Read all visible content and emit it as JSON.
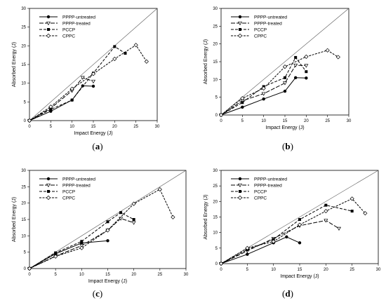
{
  "chart_data": [
    {
      "type": "line",
      "caption": "a",
      "xlabel": "Impact Energy (J)",
      "ylabel": "Absorbed Energy (J)",
      "xlim": [
        0,
        30
      ],
      "ylim": [
        0,
        30
      ],
      "xticks": [
        "0",
        "5",
        "10",
        "15",
        "20",
        "25",
        "30"
      ],
      "yticks": [
        "0",
        "5",
        "10",
        "15",
        "20",
        "25",
        "30"
      ],
      "reference_line": "y = x",
      "grid": false,
      "legend_position": "top-left",
      "series": [
        {
          "name": "PPPP-untreated",
          "dash": "solid",
          "marker": "filled-circle",
          "x": [
            0,
            5,
            10,
            12.5,
            15
          ],
          "y": [
            0,
            2.5,
            5.5,
            9.3,
            9.2
          ]
        },
        {
          "name": "PPPP-treated",
          "dash": "long-dash",
          "marker": "open-triangle",
          "x": [
            0,
            5,
            10,
            12.5,
            15
          ],
          "y": [
            0,
            3.3,
            8,
            11.5,
            10.5
          ]
        },
        {
          "name": "PCCP",
          "dash": "dash",
          "marker": "filled-square",
          "x": [
            0,
            5,
            10,
            15,
            20,
            22.5
          ],
          "y": [
            0,
            3,
            5.5,
            12.7,
            19.8,
            18
          ]
        },
        {
          "name": "CPPC",
          "dash": "short-dash",
          "marker": "open-diamond",
          "x": [
            0,
            5,
            10,
            15,
            20,
            25,
            27.5
          ],
          "y": [
            0,
            3.7,
            8.5,
            12.5,
            16.5,
            20.2,
            15.8
          ]
        }
      ]
    },
    {
      "type": "line",
      "caption": "b",
      "xlabel": "Impact Energy (J)",
      "ylabel": "Absorbed Energy (J)",
      "xlim": [
        0,
        30
      ],
      "ylim": [
        0,
        30
      ],
      "xticks": [
        "0",
        "5",
        "10",
        "15",
        "20",
        "25",
        "30"
      ],
      "yticks": [
        "0",
        "5",
        "10",
        "15",
        "20",
        "25",
        "30"
      ],
      "reference_line": "y = x",
      "grid": false,
      "legend_position": "top-left",
      "series": [
        {
          "name": "PPPP-untreated",
          "dash": "solid",
          "marker": "filled-circle",
          "x": [
            0,
            5,
            10,
            15,
            17.5,
            20
          ],
          "y": [
            0,
            2.2,
            4.5,
            6.7,
            10.5,
            10.4
          ]
        },
        {
          "name": "PPPP-treated",
          "dash": "long-dash",
          "marker": "open-triangle",
          "x": [
            0,
            5,
            10,
            15,
            17.5,
            20
          ],
          "y": [
            0,
            4,
            6,
            9,
            14,
            13.9
          ]
        },
        {
          "name": "PCCP",
          "dash": "dash",
          "marker": "filled-square",
          "x": [
            0,
            5,
            10,
            15,
            17.5,
            20
          ],
          "y": [
            0,
            3.5,
            8,
            10.5,
            16.2,
            12.2
          ]
        },
        {
          "name": "CPPC",
          "dash": "short-dash",
          "marker": "open-diamond",
          "x": [
            0,
            5,
            10,
            15,
            20,
            25,
            27.5
          ],
          "y": [
            0,
            4.7,
            7.5,
            13.6,
            16.4,
            18.2,
            16.3
          ]
        }
      ]
    },
    {
      "type": "line",
      "caption": "c",
      "xlabel": "Impact Energy (J)",
      "ylabel": "Absorbed Energy (J)",
      "xlim": [
        0,
        30
      ],
      "ylim": [
        0,
        30
      ],
      "xticks": [
        "0",
        "5",
        "10",
        "15",
        "20",
        "25",
        "30"
      ],
      "yticks": [
        "0",
        "5",
        "10",
        "15",
        "20",
        "25",
        "30"
      ],
      "reference_line": "y = x",
      "grid": false,
      "legend_position": "top-left",
      "series": [
        {
          "name": "PPPP-untreated",
          "dash": "solid",
          "marker": "filled-circle",
          "x": [
            0,
            5,
            10,
            15
          ],
          "y": [
            0,
            4.5,
            7.8,
            8.5
          ]
        },
        {
          "name": "PPPP-treated",
          "dash": "long-dash",
          "marker": "open-triangle",
          "x": [
            0,
            5,
            10,
            15,
            17.5,
            20
          ],
          "y": [
            0,
            3.8,
            7,
            11.7,
            15.3,
            14
          ]
        },
        {
          "name": "PCCP",
          "dash": "dash",
          "marker": "filled-square",
          "x": [
            0,
            5,
            10,
            15,
            17.5,
            20
          ],
          "y": [
            0,
            4.8,
            8.3,
            14.3,
            17.1,
            15
          ]
        },
        {
          "name": "CPPC",
          "dash": "short-dash",
          "marker": "open-diamond",
          "x": [
            0,
            5,
            10,
            15,
            20,
            25,
            27.5
          ],
          "y": [
            0,
            3.7,
            6.3,
            11.7,
            19.8,
            24.2,
            15.7
          ]
        }
      ]
    },
    {
      "type": "line",
      "caption": "d",
      "xlabel": "Impact Energy (J)",
      "ylabel": "Absorbed Energy (J)",
      "xlim": [
        0,
        30
      ],
      "ylim": [
        0,
        30
      ],
      "xticks": [
        "0",
        "5",
        "10",
        "15",
        "20",
        "25",
        "30"
      ],
      "yticks": [
        "0",
        "5",
        "10",
        "15",
        "20",
        "25",
        "30"
      ],
      "reference_line": "y = x",
      "grid": false,
      "legend_position": "top-left",
      "series": [
        {
          "name": "PPPP-untreated",
          "dash": "solid",
          "marker": "filled-circle",
          "x": [
            0,
            5,
            10,
            12.5,
            15
          ],
          "y": [
            0,
            3,
            6.7,
            8.6,
            6.7
          ]
        },
        {
          "name": "PPPP-treated",
          "dash": "long-dash",
          "marker": "open-triangle",
          "x": [
            0,
            5,
            10,
            15,
            20,
            22.5
          ],
          "y": [
            0,
            4.1,
            8.1,
            12.2,
            13.9,
            11.3
          ]
        },
        {
          "name": "PCCP",
          "dash": "dash",
          "marker": "filled-square",
          "x": [
            0,
            5,
            10,
            15,
            20,
            25
          ],
          "y": [
            0,
            4.5,
            7.8,
            14.2,
            18.8,
            16.9
          ]
        },
        {
          "name": "CPPC",
          "dash": "short-dash",
          "marker": "open-diamond",
          "x": [
            0,
            5,
            10,
            15,
            20,
            25,
            27.5
          ],
          "y": [
            0,
            5,
            7.1,
            12.5,
            16.9,
            20.9,
            16.2
          ]
        }
      ]
    }
  ]
}
